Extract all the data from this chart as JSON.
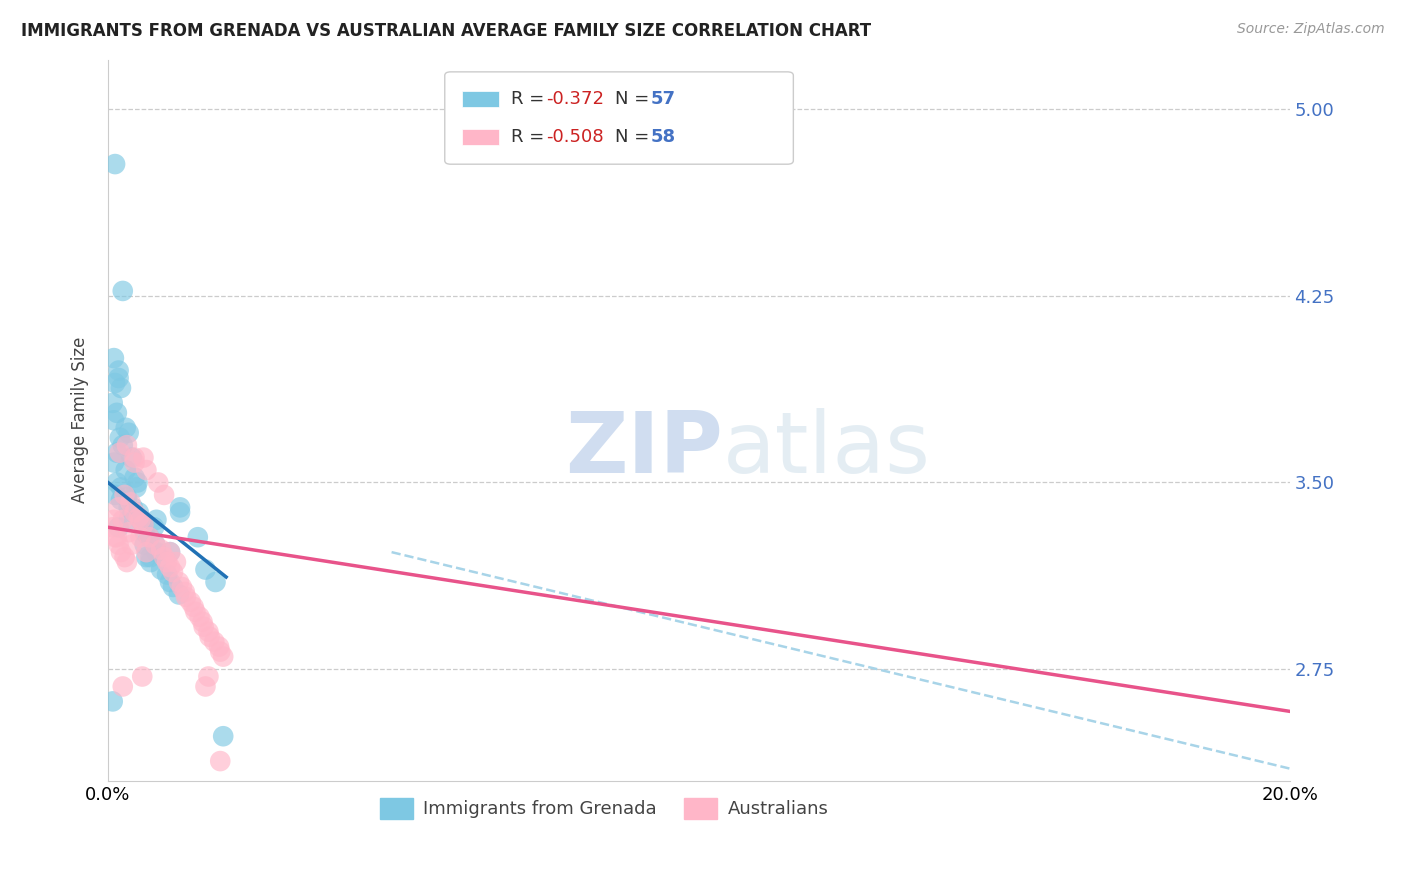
{
  "title": "IMMIGRANTS FROM GRENADA VS AUSTRALIAN AVERAGE FAMILY SIZE CORRELATION CHART",
  "source": "Source: ZipAtlas.com",
  "ylabel": "Average Family Size",
  "xlim": [
    0.0,
    0.2
  ],
  "ylim": [
    2.3,
    5.2
  ],
  "yticks": [
    2.75,
    3.5,
    4.25,
    5.0
  ],
  "watermark_zip": "ZIP",
  "watermark_atlas": "atlas",
  "blue_color": "#7ec8e3",
  "pink_color": "#ffb6c8",
  "blue_line_color": "#2171b5",
  "pink_line_color": "#e8538a",
  "blue_dashed_color": "#a8d4e8",
  "background_color": "#ffffff",
  "grenada_points": [
    [
      0.0012,
      4.78
    ],
    [
      0.0025,
      4.27
    ],
    [
      0.0018,
      3.92
    ],
    [
      0.0022,
      3.88
    ],
    [
      0.0008,
      3.82
    ],
    [
      0.0015,
      3.78
    ],
    [
      0.001,
      3.75
    ],
    [
      0.003,
      3.72
    ],
    [
      0.0035,
      3.7
    ],
    [
      0.002,
      3.68
    ],
    [
      0.0025,
      3.65
    ],
    [
      0.0015,
      3.62
    ],
    [
      0.004,
      3.6
    ],
    [
      0.001,
      3.58
    ],
    [
      0.003,
      3.55
    ],
    [
      0.0045,
      3.52
    ],
    [
      0.005,
      3.5
    ],
    [
      0.0048,
      3.48
    ],
    [
      0.0012,
      3.45
    ],
    [
      0.0022,
      3.43
    ],
    [
      0.0035,
      3.4
    ],
    [
      0.0042,
      3.38
    ],
    [
      0.0055,
      3.35
    ],
    [
      0.006,
      3.33
    ],
    [
      0.0062,
      3.3
    ],
    [
      0.007,
      3.28
    ],
    [
      0.008,
      3.25
    ],
    [
      0.0082,
      3.22
    ],
    [
      0.0065,
      3.2
    ],
    [
      0.0072,
      3.18
    ],
    [
      0.009,
      3.15
    ],
    [
      0.01,
      3.13
    ],
    [
      0.0105,
      3.1
    ],
    [
      0.011,
      3.08
    ],
    [
      0.012,
      3.05
    ],
    [
      0.0035,
      3.35
    ],
    [
      0.0078,
      3.32
    ],
    [
      0.0105,
      3.22
    ],
    [
      0.0082,
      3.35
    ],
    [
      0.0122,
      3.4
    ],
    [
      0.0152,
      3.28
    ],
    [
      0.0165,
      3.15
    ],
    [
      0.0182,
      3.1
    ],
    [
      0.0012,
      3.9
    ],
    [
      0.0018,
      3.95
    ],
    [
      0.001,
      4.0
    ],
    [
      0.0015,
      3.5
    ],
    [
      0.0022,
      3.48
    ],
    [
      0.0032,
      3.44
    ],
    [
      0.0042,
      3.4
    ],
    [
      0.0052,
      3.38
    ],
    [
      0.0008,
      2.62
    ],
    [
      0.0122,
      3.38
    ],
    [
      0.0195,
      2.48
    ],
    [
      0.0018,
      3.32
    ],
    [
      0.0062,
      3.25
    ],
    [
      0.0072,
      3.2
    ]
  ],
  "australian_points": [
    [
      0.0008,
      3.32
    ],
    [
      0.0012,
      3.28
    ],
    [
      0.0018,
      3.25
    ],
    [
      0.0022,
      3.22
    ],
    [
      0.0028,
      3.2
    ],
    [
      0.0032,
      3.18
    ],
    [
      0.001,
      3.35
    ],
    [
      0.0018,
      3.4
    ],
    [
      0.0028,
      3.45
    ],
    [
      0.0038,
      3.42
    ],
    [
      0.0045,
      3.38
    ],
    [
      0.0052,
      3.36
    ],
    [
      0.006,
      3.33
    ],
    [
      0.0035,
      3.3
    ],
    [
      0.0015,
      3.28
    ],
    [
      0.002,
      3.62
    ],
    [
      0.0032,
      3.65
    ],
    [
      0.0045,
      3.6
    ],
    [
      0.0065,
      3.55
    ],
    [
      0.0085,
      3.5
    ],
    [
      0.0095,
      3.45
    ],
    [
      0.0055,
      3.35
    ],
    [
      0.007,
      3.28
    ],
    [
      0.0105,
      3.22
    ],
    [
      0.0115,
      3.18
    ],
    [
      0.008,
      3.25
    ],
    [
      0.009,
      3.23
    ],
    [
      0.0095,
      3.2
    ],
    [
      0.01,
      3.18
    ],
    [
      0.0105,
      3.16
    ],
    [
      0.011,
      3.14
    ],
    [
      0.012,
      3.1
    ],
    [
      0.0125,
      3.08
    ],
    [
      0.013,
      3.06
    ],
    [
      0.0132,
      3.04
    ],
    [
      0.014,
      3.02
    ],
    [
      0.0145,
      3.0
    ],
    [
      0.0148,
      2.98
    ],
    [
      0.0155,
      2.96
    ],
    [
      0.016,
      2.94
    ],
    [
      0.0162,
      2.92
    ],
    [
      0.017,
      2.9
    ],
    [
      0.0172,
      2.88
    ],
    [
      0.018,
      2.86
    ],
    [
      0.0188,
      2.84
    ],
    [
      0.019,
      2.82
    ],
    [
      0.0195,
      2.8
    ],
    [
      0.004,
      3.25
    ],
    [
      0.0025,
      3.35
    ],
    [
      0.006,
      3.6
    ],
    [
      0.0045,
      3.58
    ],
    [
      0.0055,
      3.28
    ],
    [
      0.0065,
      3.22
    ],
    [
      0.0025,
      2.68
    ],
    [
      0.0058,
      2.72
    ],
    [
      0.0165,
      2.68
    ],
    [
      0.017,
      2.72
    ],
    [
      0.019,
      2.38
    ]
  ],
  "blue_line": {
    "x0": 0.0,
    "y0": 3.5,
    "x1": 0.02,
    "y1": 3.12
  },
  "pink_line": {
    "x0": 0.0,
    "y0": 3.32,
    "x1": 0.2,
    "y1": 2.58
  },
  "blue_dashed_line": {
    "x0": 0.048,
    "y0": 3.22,
    "x1": 0.2,
    "y1": 2.35
  }
}
